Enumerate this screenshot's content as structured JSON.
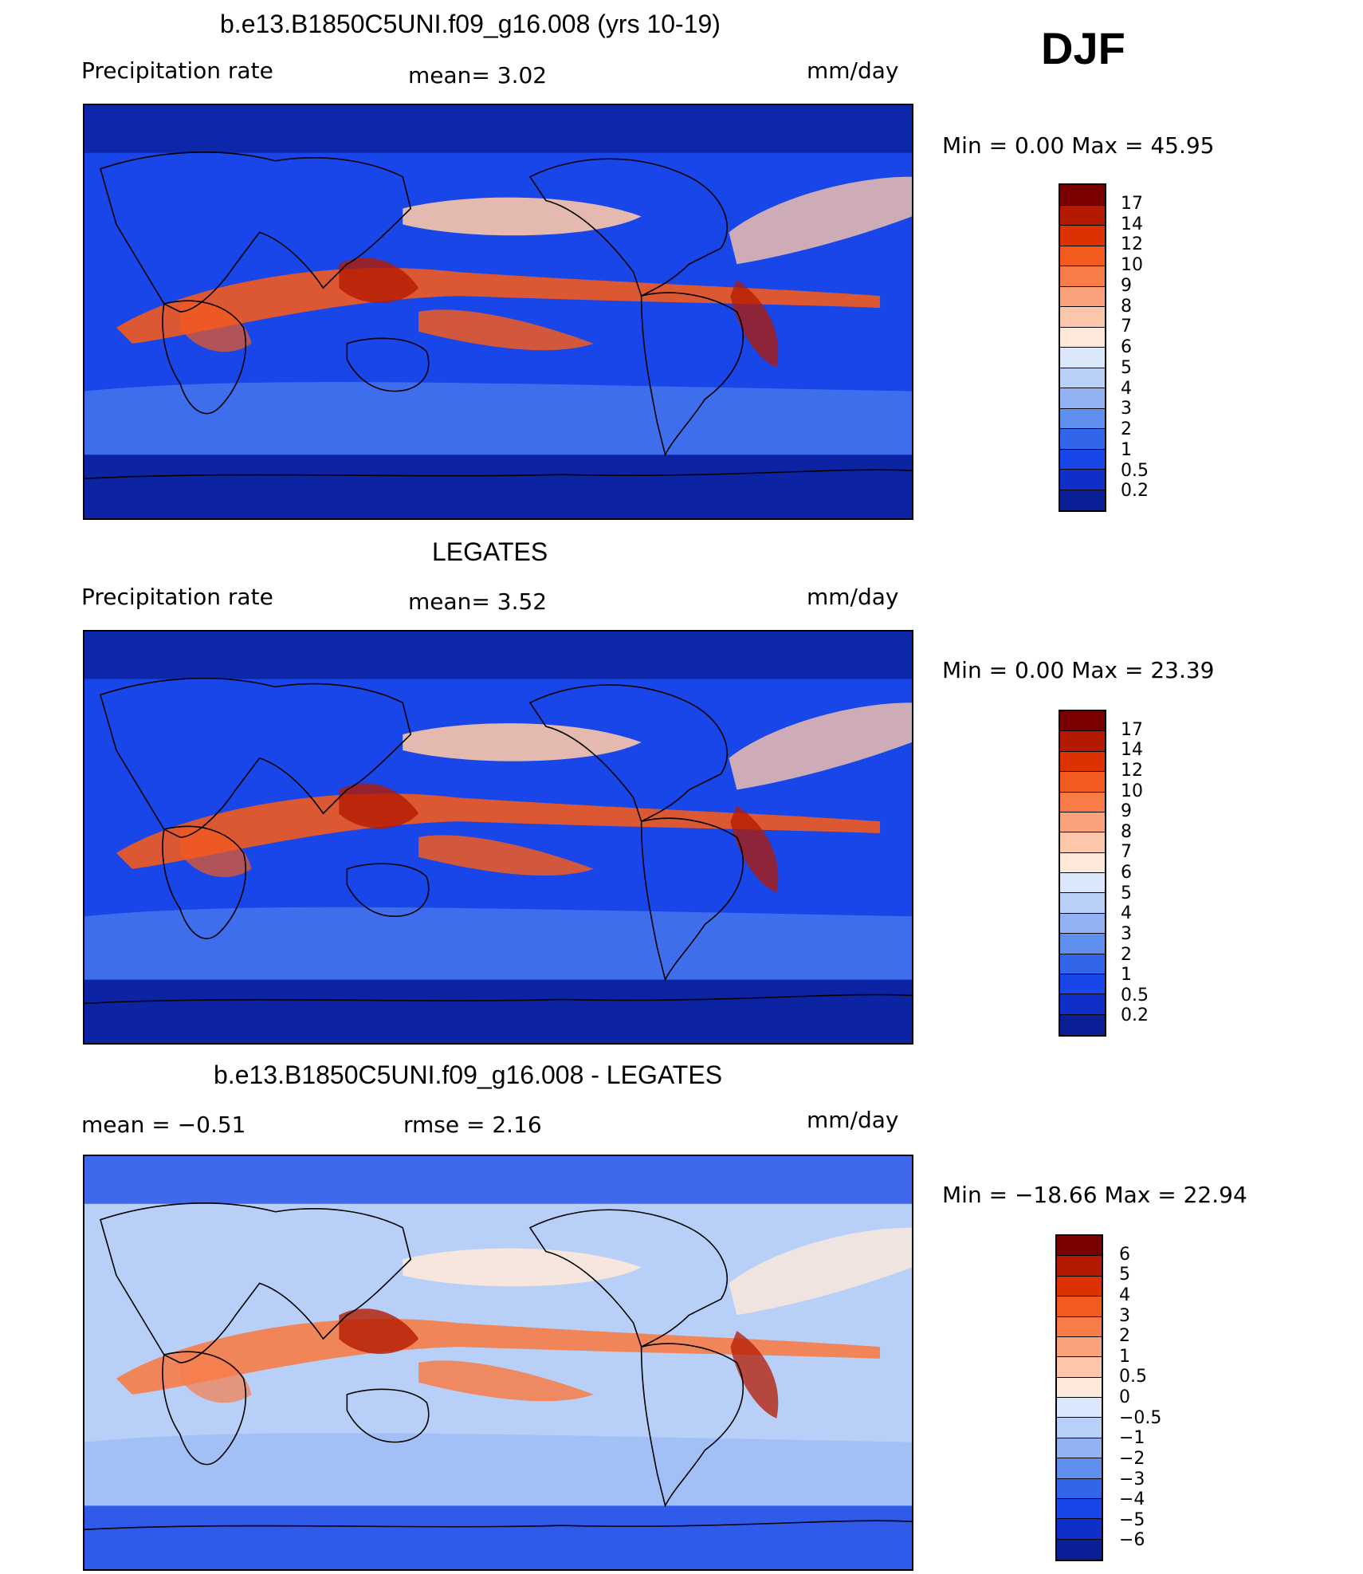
{
  "season": "DJF",
  "panels": [
    {
      "title": "b.e13.B1850C5UNI.f09_g16.008 (yrs 10-19)",
      "left_label": "Precipitation rate",
      "center_label": "mean=    3.02",
      "units": "mm/day",
      "minmax": "Min =     0.00  Max =    45.95",
      "colorbar": {
        "labels": [
          "17",
          "14",
          "12",
          "10",
          "9",
          "8",
          "7",
          "6",
          "5",
          "4",
          "3",
          "2",
          "1",
          "0.5",
          "0.2"
        ],
        "colors": [
          "#7a0000",
          "#b41a00",
          "#dc3200",
          "#f25a1e",
          "#f77c48",
          "#f9a27c",
          "#fbc6aa",
          "#fde8da",
          "#dbe8fb",
          "#b8d0f8",
          "#92b2f4",
          "#6090ef",
          "#3266ea",
          "#1846e8",
          "#0f2fc8",
          "#0a1e96"
        ]
      },
      "map_colors": {
        "ocean": "#1846e8",
        "dry": "#0a1e96",
        "mid": "#6090ef",
        "wet": "#f25a1e",
        "heavy": "#b41a00",
        "light": "#fbc6aa"
      }
    },
    {
      "title": "LEGATES",
      "left_label": "Precipitation rate",
      "center_label": "mean=    3.52",
      "units": "mm/day",
      "minmax": "Min =     0.00  Max =    23.39",
      "colorbar": {
        "labels": [
          "17",
          "14",
          "12",
          "10",
          "9",
          "8",
          "7",
          "6",
          "5",
          "4",
          "3",
          "2",
          "1",
          "0.5",
          "0.2"
        ],
        "colors": [
          "#7a0000",
          "#b41a00",
          "#dc3200",
          "#f25a1e",
          "#f77c48",
          "#f9a27c",
          "#fbc6aa",
          "#fde8da",
          "#dbe8fb",
          "#b8d0f8",
          "#92b2f4",
          "#6090ef",
          "#3266ea",
          "#1846e8",
          "#0f2fc8",
          "#0a1e96"
        ]
      },
      "map_colors": {
        "ocean": "#1846e8",
        "dry": "#0a1e96",
        "mid": "#6090ef",
        "wet": "#f25a1e",
        "heavy": "#b41a00",
        "light": "#fbc6aa"
      }
    },
    {
      "title": "b.e13.B1850C5UNI.f09_g16.008 - LEGATES",
      "left_label": "mean =    −0.51",
      "center_label": "rmse  =     2.16",
      "units": "mm/day",
      "minmax": "Min = −18.66  Max =    22.94",
      "colorbar": {
        "labels": [
          "6",
          "5",
          "4",
          "3",
          "2",
          "1",
          "0.5",
          "0",
          "−0.5",
          "−1",
          "−2",
          "−3",
          "−4",
          "−5",
          "−6"
        ],
        "colors": [
          "#7a0000",
          "#b41a00",
          "#dc3200",
          "#f25a1e",
          "#f77c48",
          "#f9a27c",
          "#fbc6aa",
          "#fde8da",
          "#dbe8fb",
          "#b8d0f8",
          "#92b2f4",
          "#6090ef",
          "#3266ea",
          "#1846e8",
          "#0f2fc8",
          "#0a1e96"
        ]
      },
      "map_colors": {
        "ocean": "#b8d0f8",
        "dry": "#1846e8",
        "mid": "#92b2f4",
        "wet": "#f77c48",
        "heavy": "#b41a00",
        "light": "#fde8da"
      }
    }
  ]
}
